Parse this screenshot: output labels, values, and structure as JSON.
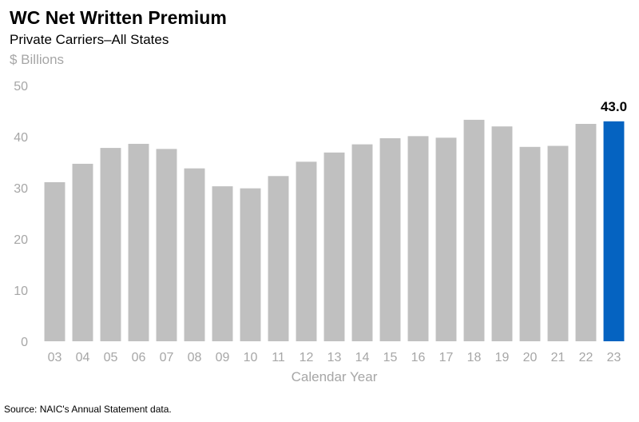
{
  "chart_data": {
    "type": "bar",
    "title": "WC Net Written Premium",
    "subtitle": "Private Carriers–All States",
    "ylabel": "$ Billions",
    "xlabel": "Calendar Year",
    "categories": [
      "03",
      "04",
      "05",
      "06",
      "07",
      "08",
      "09",
      "10",
      "11",
      "12",
      "13",
      "14",
      "15",
      "16",
      "17",
      "18",
      "19",
      "20",
      "21",
      "22",
      "23"
    ],
    "values": [
      31.1,
      34.7,
      37.8,
      38.6,
      37.6,
      33.8,
      30.3,
      29.9,
      32.3,
      35.1,
      36.9,
      38.5,
      39.7,
      40.1,
      39.8,
      43.3,
      42.0,
      38.0,
      38.2,
      42.5,
      43.0
    ],
    "ylim": [
      0,
      50
    ],
    "yticks": [
      0,
      10,
      20,
      30,
      40,
      50
    ],
    "grid": false,
    "highlight": {
      "category": "23",
      "label": "43.0"
    },
    "colors": {
      "default_bar": "#c0c0c0",
      "highlight_bar": "#0563c1"
    }
  },
  "footer": {
    "source": "Source: NAIC's Annual Statement data."
  }
}
